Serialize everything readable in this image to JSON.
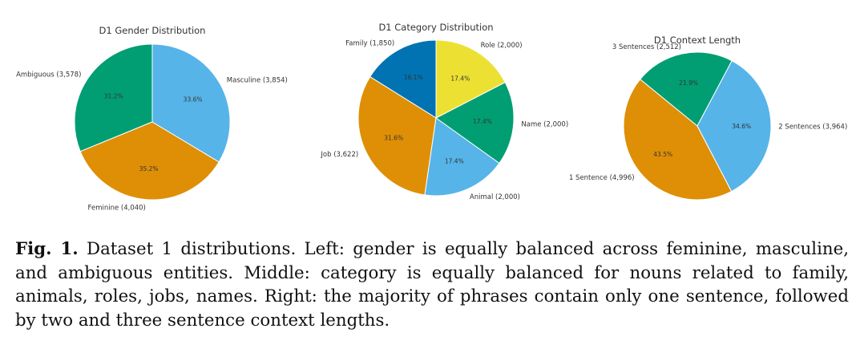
{
  "chart_data": [
    {
      "type": "pie",
      "title": "D1 Gender Distribution",
      "start_angle_deg": 90,
      "slices": [
        {
          "label": "Ambiguous (3,578)",
          "count": 3578,
          "pct_label": "31.2%",
          "color": "#029e73"
        },
        {
          "label": "Feminine (4,040)",
          "count": 4040,
          "pct_label": "35.2%",
          "color": "#de8f05"
        },
        {
          "label": "Masculine (3,854)",
          "count": 3854,
          "pct_label": "33.6%",
          "color": "#56b4e9"
        }
      ]
    },
    {
      "type": "pie",
      "title": "D1 Category Distribution",
      "start_angle_deg": 90,
      "slices": [
        {
          "label": "Family (1,850)",
          "count": 1850,
          "pct_label": "16.1%",
          "color": "#0173b2"
        },
        {
          "label": "Job (3,622)",
          "count": 3622,
          "pct_label": "31.6%",
          "color": "#de8f05"
        },
        {
          "label": "Animal (2,000)",
          "count": 2000,
          "pct_label": "17.4%",
          "color": "#56b4e9"
        },
        {
          "label": "Name (2,000)",
          "count": 2000,
          "pct_label": "17.4%",
          "color": "#029e73"
        },
        {
          "label": "Role (2,000)",
          "count": 2000,
          "pct_label": "17.4%",
          "color": "#ece133"
        }
      ]
    },
    {
      "type": "pie",
      "title": "D1 Context Length",
      "start_angle_deg": 62,
      "slices": [
        {
          "label": "3 Sentences (2,512)",
          "count": 2512,
          "pct_label": "21.9%",
          "color": "#029e73"
        },
        {
          "label": "1 Sentence (4,996)",
          "count": 4996,
          "pct_label": "43.5%",
          "color": "#de8f05"
        },
        {
          "label": "2 Sentences (3,964)",
          "count": 3964,
          "pct_label": "34.6%",
          "color": "#56b4e9"
        }
      ]
    }
  ],
  "caption": {
    "fig_label": "Fig. 1.",
    "text": " Dataset 1 distributions. Left: gender is equally balanced across feminine, masculine, and ambiguous entities. Middle: category is equally balanced for nouns related to family, animals, roles, jobs, names. Right: the majority of phrases contain only one sentence, followed by two and three sentence context lengths."
  }
}
